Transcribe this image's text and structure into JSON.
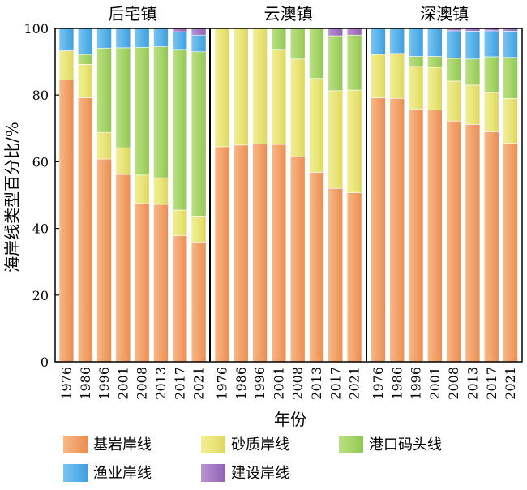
{
  "chart_data": {
    "type": "bar",
    "stacked": true,
    "ylabel": "海岸线类型百分比/%",
    "xlabel": "年份",
    "ylim": [
      0,
      100
    ],
    "yticks": [
      0,
      20,
      40,
      60,
      80,
      100
    ],
    "legend_position": "bottom",
    "series_names": [
      "基岩岸线",
      "砂质岸线",
      "港口码头线",
      "渔业岸线",
      "建设岸线"
    ],
    "series_colors": [
      "#f2a36b",
      "#eae67a",
      "#a8d56a",
      "#5ab3ea",
      "#a57ac4"
    ],
    "panels": [
      {
        "title": "后宅镇",
        "categories": [
          "1976",
          "1986",
          "1996",
          "2001",
          "2008",
          "2013",
          "2017",
          "2021"
        ],
        "series": [
          {
            "name": "基岩岸线",
            "values": [
              84.5,
              79.2,
              60.8,
              56.2,
              47.5,
              47.2,
              37.8,
              35.8
            ]
          },
          {
            "name": "砂质岸线",
            "values": [
              8.8,
              10.0,
              8.0,
              8.0,
              8.5,
              8.0,
              7.7,
              7.9
            ]
          },
          {
            "name": "港口码头线",
            "values": [
              0.0,
              3.0,
              25.3,
              30.0,
              38.3,
              39.3,
              48.0,
              49.3
            ]
          },
          {
            "name": "渔业岸线",
            "values": [
              6.7,
              7.8,
              5.9,
              5.8,
              5.7,
              5.5,
              5.5,
              5.0
            ]
          },
          {
            "name": "建设岸线",
            "values": [
              0.0,
              0.0,
              0.0,
              0.0,
              0.0,
              0.0,
              1.0,
              2.0
            ]
          }
        ]
      },
      {
        "title": "云澳镇",
        "categories": [
          "1976",
          "1986",
          "1996",
          "2001",
          "2008",
          "2013",
          "2017",
          "2021"
        ],
        "series": [
          {
            "name": "基岩岸线",
            "values": [
              64.5,
              65.0,
              65.3,
              65.2,
              61.5,
              56.8,
              52.0,
              50.7
            ]
          },
          {
            "name": "砂质岸线",
            "values": [
              35.5,
              35.0,
              34.7,
              28.3,
              29.3,
              28.2,
              29.3,
              30.8
            ]
          },
          {
            "name": "港口码头线",
            "values": [
              0.0,
              0.0,
              0.0,
              6.5,
              9.2,
              15.0,
              16.5,
              16.5
            ]
          },
          {
            "name": "渔业岸线",
            "values": [
              0.0,
              0.0,
              0.0,
              0.0,
              0.0,
              0.0,
              0.0,
              0.0
            ]
          },
          {
            "name": "建设岸线",
            "values": [
              0.0,
              0.0,
              0.0,
              0.0,
              0.0,
              0.0,
              2.2,
              2.0
            ]
          }
        ]
      },
      {
        "title": "深澳镇",
        "categories": [
          "1976",
          "1986",
          "1996",
          "2001",
          "2008",
          "2013",
          "2017",
          "2021"
        ],
        "series": [
          {
            "name": "基岩岸线",
            "values": [
              79.2,
              79.0,
              75.8,
              75.5,
              72.2,
              71.2,
              69.0,
              65.5
            ]
          },
          {
            "name": "砂质岸线",
            "values": [
              13.0,
              13.5,
              12.8,
              12.8,
              12.0,
              11.8,
              11.8,
              13.5
            ]
          },
          {
            "name": "港口码头线",
            "values": [
              0.0,
              0.0,
              3.0,
              3.3,
              6.8,
              7.8,
              10.7,
              12.3
            ]
          },
          {
            "name": "渔业岸线",
            "values": [
              7.8,
              7.5,
              8.4,
              8.4,
              8.3,
              8.4,
              7.8,
              7.9
            ]
          },
          {
            "name": "建设岸线",
            "values": [
              0.0,
              0.0,
              0.0,
              0.0,
              0.7,
              0.8,
              0.7,
              0.8
            ]
          }
        ]
      }
    ]
  }
}
